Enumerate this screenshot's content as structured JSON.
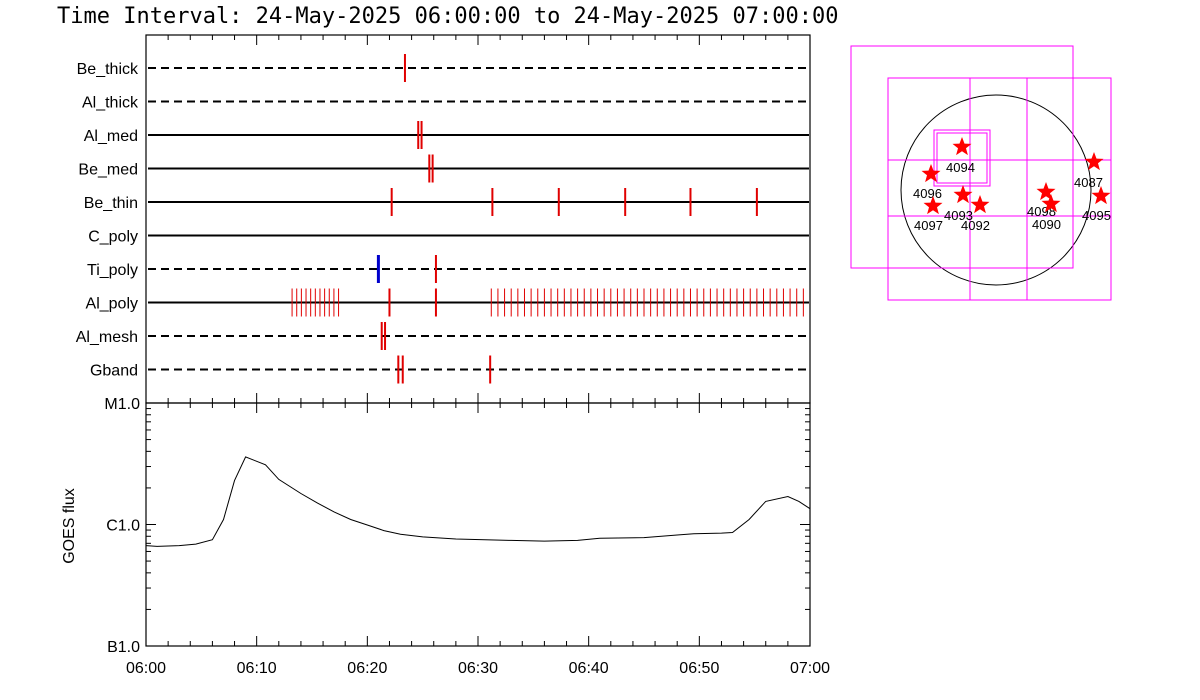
{
  "title": "Time Interval: 24-May-2025 06:00:00 to 24-May-2025 07:00:00",
  "chart_data": [
    {
      "type": "event-timeline",
      "x_unit": "minutes after 06:00",
      "xlim": [
        0,
        60
      ],
      "channels": [
        {
          "name": "Be_thick",
          "line": "dashed",
          "events": [
            23.4
          ]
        },
        {
          "name": "Al_thick",
          "line": "dashed",
          "events": []
        },
        {
          "name": "Al_med",
          "line": "solid",
          "events": [
            24.6,
            24.9
          ]
        },
        {
          "name": "Be_med",
          "line": "solid",
          "events": [
            25.6,
            25.9
          ]
        },
        {
          "name": "Be_thin",
          "line": "solid",
          "events": [
            22.2,
            31.3,
            37.3,
            43.3,
            49.2,
            55.2
          ]
        },
        {
          "name": "C_poly",
          "line": "solid",
          "events": []
        },
        {
          "name": "Ti_poly",
          "line": "dashed",
          "events": [
            26.2
          ],
          "blue_events": [
            21.0
          ]
        },
        {
          "name": "Al_poly",
          "line": "solid",
          "events": [
            22.0,
            26.2
          ],
          "dense_ranges": [
            {
              "start": 13.2,
              "end": 17.4,
              "step": 0.42
            },
            {
              "start": 31.2,
              "end": 59.8,
              "step": 0.6
            }
          ]
        },
        {
          "name": "Al_mesh",
          "line": "dashed",
          "events": [
            21.3,
            21.6
          ]
        },
        {
          "name": "Gband",
          "line": "dashed",
          "events": [
            22.8,
            23.2,
            31.1
          ]
        }
      ],
      "event_color": "#e00000",
      "blue_color": "#0000cc"
    },
    {
      "type": "line",
      "ylabel": "GOES flux",
      "y_scale": "log",
      "yticks": [
        "B1.0",
        "C1.0",
        "M1.0"
      ],
      "ytick_values": [
        1e-07,
        1e-06,
        1e-05
      ],
      "ylim": [
        1e-07,
        1e-05
      ],
      "xticks": [
        "06:00",
        "06:10",
        "06:20",
        "06:30",
        "06:40",
        "06:50",
        "07:00"
      ],
      "xlim": [
        0,
        60
      ],
      "x": [
        0,
        1,
        3,
        4.5,
        6,
        7,
        8,
        9,
        10.8,
        12,
        14,
        15.5,
        17,
        18.5,
        20,
        21.5,
        23,
        25,
        28,
        33,
        36,
        39,
        41,
        45,
        48,
        49.5,
        52,
        53,
        54.5,
        56,
        58,
        59,
        60
      ],
      "y": [
        6.7e-07,
        6.6e-07,
        6.7e-07,
        6.9e-07,
        7.5e-07,
        1.1e-06,
        2.3e-06,
        3.6e-06,
        3.1e-06,
        2.35e-06,
        1.8e-06,
        1.5e-06,
        1.27e-06,
        1.1e-06,
        9.9e-07,
        8.9e-07,
        8.3e-07,
        7.9e-07,
        7.6e-07,
        7.4e-07,
        7.3e-07,
        7.4e-07,
        7.7e-07,
        7.8e-07,
        8.2e-07,
        8.4e-07,
        8.5e-07,
        8.6e-07,
        1.1e-06,
        1.55e-06,
        1.7e-06,
        1.55e-06,
        1.35e-06
      ],
      "line_color": "#000000"
    }
  ],
  "solar_map": {
    "box_color": "#ff00ff",
    "star_color": "#ff0000",
    "regions": [
      {
        "label": "4094"
      },
      {
        "label": "4096"
      },
      {
        "label": "4093"
      },
      {
        "label": "4097"
      },
      {
        "label": "4092"
      },
      {
        "label": "4098"
      },
      {
        "label": "4090"
      },
      {
        "label": "4087"
      },
      {
        "label": "4095"
      }
    ]
  }
}
